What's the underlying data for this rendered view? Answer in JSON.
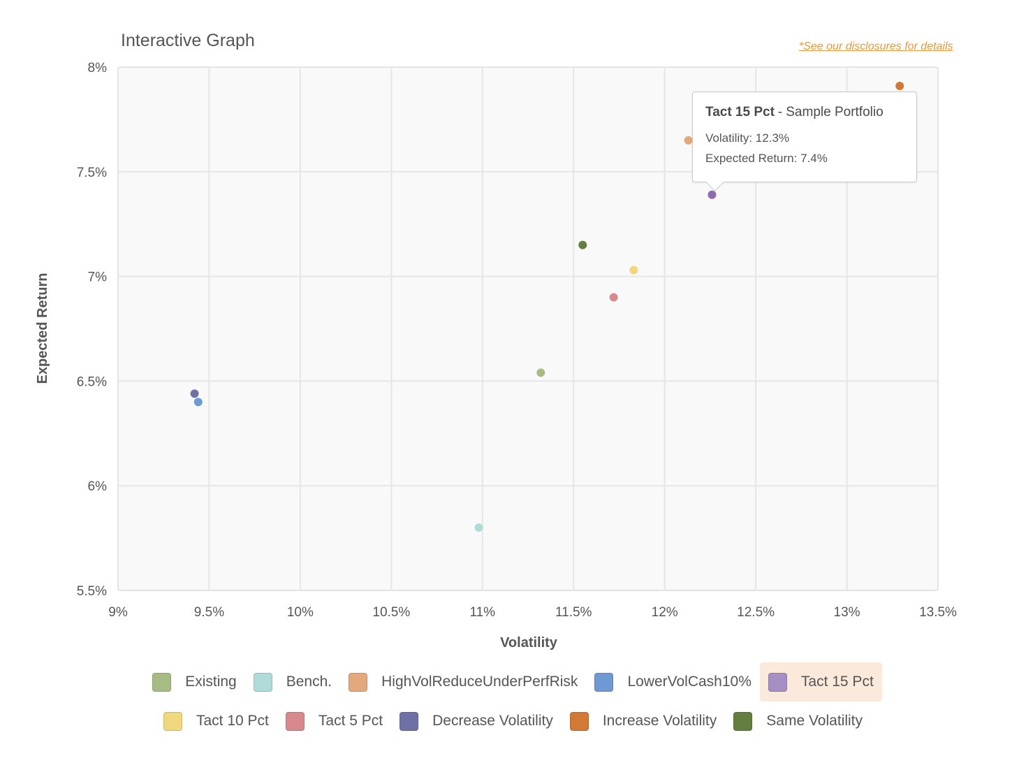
{
  "header": {
    "title": "Interactive Graph",
    "disclosure_link": "*See our disclosures for details"
  },
  "colors": {
    "accent_link": "#e8973a",
    "plot_bg": "#f9f9f9",
    "grid": "#e6e6e6",
    "tooltip_point": "#8c6bb0"
  },
  "chart_data": {
    "type": "scatter",
    "title": "Interactive Graph",
    "xlabel": "Volatility",
    "ylabel": "Expected Return",
    "xlim": [
      9,
      13.5
    ],
    "ylim": [
      5.5,
      8
    ],
    "xticks": [
      "9%",
      "9.5%",
      "10%",
      "10.5%",
      "11%",
      "11.5%",
      "12%",
      "12.5%",
      "13%",
      "13.5%"
    ],
    "yticks": [
      "5.5%",
      "6%",
      "6.5%",
      "7%",
      "7.5%",
      "8%"
    ],
    "grid": true,
    "legend_position": "bottom",
    "series": [
      {
        "name": "Existing",
        "color": "#a7bc85",
        "x": 11.32,
        "y": 6.54
      },
      {
        "name": "Bench.",
        "color": "#afdbd8",
        "x": 10.98,
        "y": 5.8
      },
      {
        "name": "HighVolReduceUnderPerfRisk",
        "color": "#e3a97c",
        "x": 12.13,
        "y": 7.65
      },
      {
        "name": "LowerVolCash10%",
        "color": "#6f99d2",
        "x": 9.44,
        "y": 6.4
      },
      {
        "name": "Tact 15 Pct",
        "color": "#8c6bb0",
        "x": 12.26,
        "y": 7.39
      },
      {
        "name": "Tact 10 Pct",
        "color": "#f1d77d",
        "x": 11.83,
        "y": 7.03
      },
      {
        "name": "Tact 5 Pct",
        "color": "#d7898b",
        "x": 11.72,
        "y": 6.9
      },
      {
        "name": "Decrease Volatility",
        "color": "#6e70a6",
        "x": 9.42,
        "y": 6.44
      },
      {
        "name": "Increase Volatility",
        "color": "#d27a35",
        "x": 13.29,
        "y": 7.91
      },
      {
        "name": "Same Volatility",
        "color": "#637e3f",
        "x": 11.55,
        "y": 7.15
      }
    ]
  },
  "tooltip": {
    "series": "Tact 15 Pct",
    "separator": "-",
    "subtitle": "Sample Portfolio",
    "volatility_line": "Volatility: 12.3%",
    "return_line": "Expected Return: 7.4%"
  },
  "legend": {
    "rows": [
      [
        {
          "label": "Existing",
          "color": "#a7bc85",
          "active": false
        },
        {
          "label": "Bench.",
          "color": "#afdbd8",
          "active": false
        },
        {
          "label": "HighVolReduceUnderPerfRisk",
          "color": "#e3a97c",
          "active": false
        },
        {
          "label": "LowerVolCash10%",
          "color": "#6f99d2",
          "active": false
        },
        {
          "label": "Tact 15 Pct",
          "color": "#a58fc3",
          "active": true
        }
      ],
      [
        {
          "label": "Tact 10 Pct",
          "color": "#f1d77d",
          "active": false
        },
        {
          "label": "Tact 5 Pct",
          "color": "#d7898b",
          "active": false
        },
        {
          "label": "Decrease Volatility",
          "color": "#6e70a6",
          "active": false
        },
        {
          "label": "Increase Volatility",
          "color": "#d27a35",
          "active": false
        },
        {
          "label": "Same Volatility",
          "color": "#637e3f",
          "active": false
        }
      ]
    ]
  }
}
